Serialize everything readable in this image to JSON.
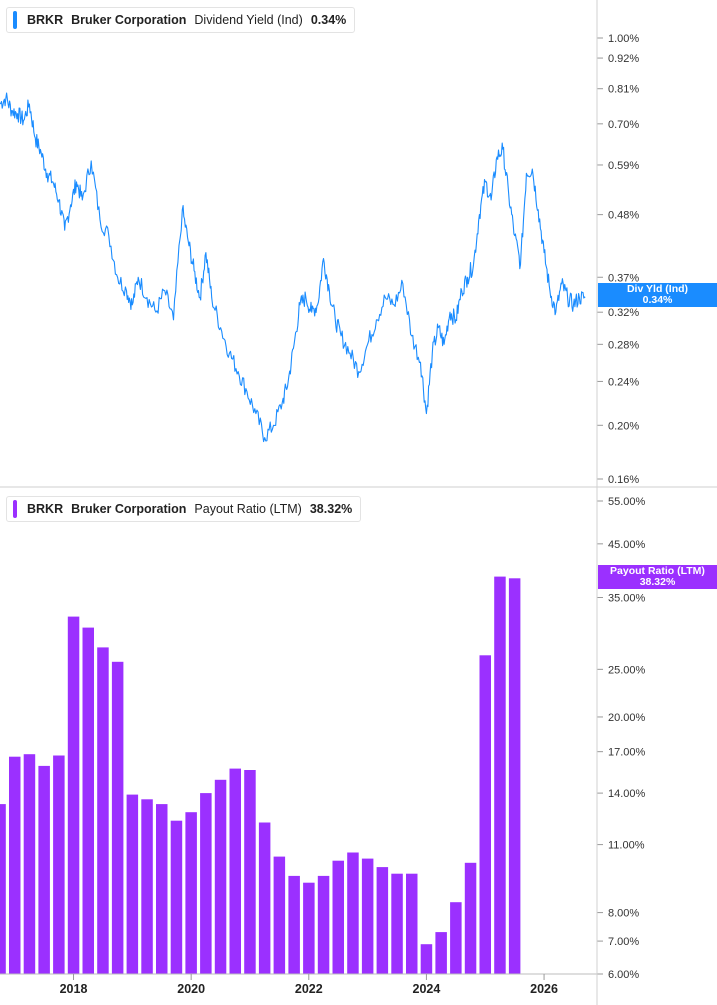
{
  "top_panel": {
    "legend": {
      "ticker": "BRKR",
      "company": "Bruker Corporation",
      "metric": "Dividend Yield (Ind)",
      "value": "0.34%"
    },
    "tag": {
      "label": "Div Yld (Ind)",
      "value": "0.34%"
    },
    "color": "#1a8cff"
  },
  "bottom_panel": {
    "legend": {
      "ticker": "BRKR",
      "company": "Bruker Corporation",
      "metric": "Payout Ratio (LTM)",
      "value": "38.32%"
    },
    "tag": {
      "label": "Payout Ratio (LTM)",
      "value": "38.32%"
    },
    "color": "#9b30ff"
  },
  "chart_data": [
    {
      "type": "line",
      "title": "BRKR Bruker Corporation Dividend Yield (Ind) 0.34%",
      "y_scale": "log",
      "ylim": [
        0.16,
        1.0
      ],
      "y_ticks": [
        "1.00%",
        "0.92%",
        "0.81%",
        "0.70%",
        "0.59%",
        "0.48%",
        "0.37%",
        "0.32%",
        "0.28%",
        "0.24%",
        "0.20%",
        "0.16%"
      ],
      "y_tick_values": [
        1.0,
        0.92,
        0.81,
        0.7,
        0.59,
        0.48,
        0.37,
        0.32,
        0.28,
        0.24,
        0.2,
        0.16
      ],
      "x_range": [
        2016.75,
        2026.9
      ],
      "series": [
        {
          "values_x": [
            2016.75,
            2016.85,
            2016.95,
            2017.05,
            2017.15,
            2017.25,
            2017.35,
            2017.45,
            2017.55,
            2017.65,
            2017.75,
            2017.85,
            2017.95,
            2018.05,
            2018.15,
            2018.3,
            2018.45,
            2018.6,
            2018.75,
            2018.9,
            2019.0,
            2019.1,
            2019.25,
            2019.4,
            2019.55,
            2019.7,
            2019.85,
            2019.95,
            2020.05,
            2020.15,
            2020.25,
            2020.35,
            2020.5,
            2020.65,
            2020.8,
            2020.95,
            2021.1,
            2021.25,
            2021.4,
            2021.55,
            2021.65,
            2021.75,
            2021.85,
            2021.95,
            2022.05,
            2022.15,
            2022.25,
            2022.35,
            2022.45,
            2022.55,
            2022.7,
            2022.85,
            2023.0,
            2023.15,
            2023.3,
            2023.45,
            2023.6,
            2023.75,
            2023.9,
            2024.0,
            2024.1,
            2024.2,
            2024.3,
            2024.4,
            2024.5,
            2024.6,
            2024.7,
            2024.8,
            2024.9,
            2025.0,
            2025.1,
            2025.2,
            2025.3,
            2025.4,
            2025.5,
            2025.6,
            2025.7,
            2025.8,
            2025.9,
            2026.0,
            2026.1,
            2026.2,
            2026.3,
            2026.4,
            2026.5,
            2026.6,
            2026.7
          ],
          "values_y": [
            0.76,
            0.78,
            0.74,
            0.73,
            0.71,
            0.76,
            0.66,
            0.62,
            0.57,
            0.55,
            0.51,
            0.45,
            0.5,
            0.55,
            0.51,
            0.6,
            0.47,
            0.44,
            0.37,
            0.35,
            0.33,
            0.37,
            0.34,
            0.32,
            0.35,
            0.31,
            0.49,
            0.43,
            0.38,
            0.34,
            0.41,
            0.34,
            0.3,
            0.27,
            0.25,
            0.23,
            0.21,
            0.19,
            0.2,
            0.22,
            0.24,
            0.28,
            0.33,
            0.34,
            0.32,
            0.33,
            0.4,
            0.35,
            0.31,
            0.29,
            0.27,
            0.25,
            0.28,
            0.31,
            0.34,
            0.33,
            0.36,
            0.29,
            0.26,
            0.21,
            0.27,
            0.3,
            0.28,
            0.32,
            0.31,
            0.35,
            0.37,
            0.39,
            0.48,
            0.55,
            0.51,
            0.61,
            0.63,
            0.52,
            0.44,
            0.39,
            0.57,
            0.58,
            0.49,
            0.41,
            0.35,
            0.32,
            0.36,
            0.34,
            0.33,
            0.34,
            0.34
          ]
        }
      ]
    },
    {
      "type": "bar",
      "title": "BRKR Bruker Corporation Payout Ratio (LTM) 38.32%",
      "y_scale": "log",
      "ylim": [
        6.0,
        55.0
      ],
      "y_ticks": [
        "55.00%",
        "45.00%",
        "35.00%",
        "25.00%",
        "20.00%",
        "17.00%",
        "14.00%",
        "11.00%",
        "8.00%",
        "7.00%",
        "6.00%"
      ],
      "y_tick_values": [
        55,
        45,
        35,
        25,
        20,
        17,
        14,
        11,
        8,
        7,
        6
      ],
      "x_ticks": [
        "2018",
        "2020",
        "2022",
        "2024",
        "2026"
      ],
      "x_tick_values": [
        2018,
        2020,
        2022,
        2024,
        2026
      ],
      "x_range": [
        2016.75,
        2026.9
      ],
      "series": [
        {
          "x": [
            2016.75,
            2017.0,
            2017.25,
            2017.5,
            2017.75,
            2018.0,
            2018.25,
            2018.5,
            2018.75,
            2019.0,
            2019.25,
            2019.5,
            2019.75,
            2020.0,
            2020.25,
            2020.5,
            2020.75,
            2021.0,
            2021.25,
            2021.5,
            2021.75,
            2022.0,
            2022.25,
            2022.5,
            2022.75,
            2023.0,
            2023.25,
            2023.5,
            2023.75,
            2024.0,
            2024.25,
            2024.5,
            2024.75,
            2025.0,
            2025.25,
            2025.5
          ],
          "values": [
            13.3,
            16.6,
            16.8,
            15.9,
            16.7,
            32.0,
            30.4,
            27.7,
            25.9,
            13.9,
            13.6,
            13.3,
            12.3,
            12.8,
            14.0,
            14.9,
            15.7,
            15.6,
            12.2,
            10.4,
            9.5,
            9.2,
            9.5,
            10.2,
            10.6,
            10.3,
            9.9,
            9.6,
            9.6,
            6.9,
            7.3,
            8.4,
            10.1,
            26.7,
            38.6,
            38.3
          ]
        }
      ]
    }
  ]
}
